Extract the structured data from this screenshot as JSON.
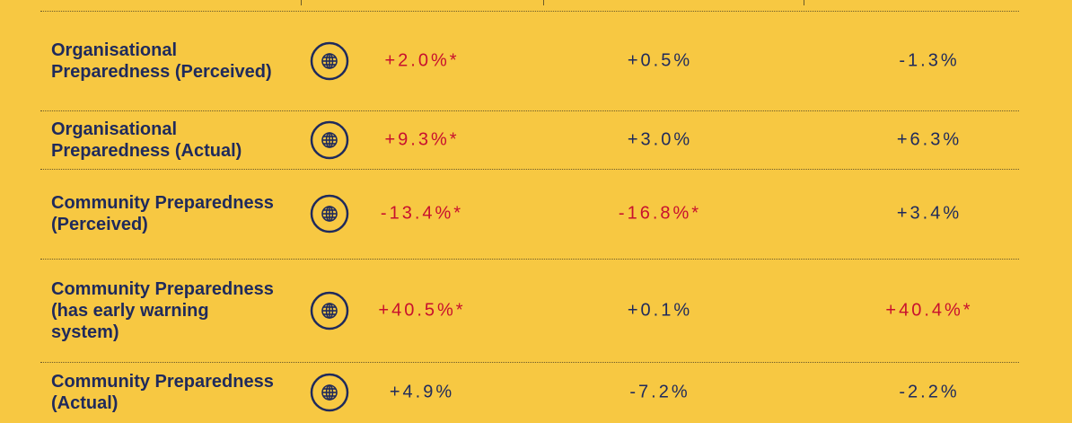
{
  "table": {
    "rows": [
      {
        "label": "Organisational Preparedness (Perceived)",
        "cells": [
          {
            "text": "+2.0%*",
            "color": "#c8102e"
          },
          {
            "text": "+0.5%",
            "color": "#1f2a5c"
          },
          {
            "text": "-1.3%",
            "color": "#1f2a5c"
          }
        ]
      },
      {
        "label": "Organisational Preparedness (Actual)",
        "cells": [
          {
            "text": "+9.3%*",
            "color": "#c8102e"
          },
          {
            "text": "+3.0%",
            "color": "#1f2a5c"
          },
          {
            "text": "+6.3%",
            "color": "#1f2a5c"
          }
        ]
      },
      {
        "label": "Community Preparedness (Perceived)",
        "cells": [
          {
            "text": "-13.4%*",
            "color": "#c8102e"
          },
          {
            "text": "-16.8%*",
            "color": "#c8102e"
          },
          {
            "text": "+3.4%",
            "color": "#1f2a5c"
          }
        ]
      },
      {
        "label": "Community Preparedness (has early warning system)",
        "cells": [
          {
            "text": "+40.5%*",
            "color": "#c8102e"
          },
          {
            "text": "+0.1%",
            "color": "#1f2a5c"
          },
          {
            "text": "+40.4%*",
            "color": "#c8102e"
          }
        ]
      },
      {
        "label": "Community Preparedness (Actual)",
        "cells": [
          {
            "text": "+4.9%",
            "color": "#1f2a5c"
          },
          {
            "text": "-7.2%",
            "color": "#1f2a5c"
          },
          {
            "text": "-2.2%",
            "color": "#1f2a5c"
          }
        ]
      }
    ]
  }
}
